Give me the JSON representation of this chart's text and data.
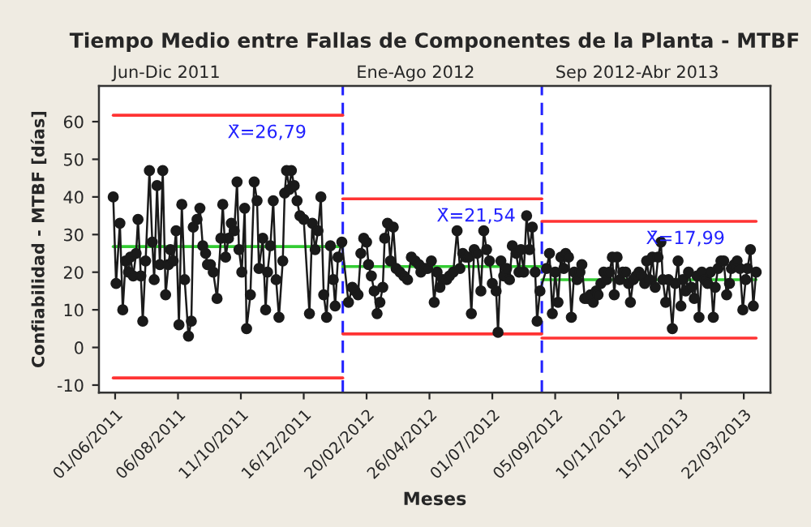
{
  "chart_data": {
    "type": "line",
    "title": "Tiempo Medio entre Fallas de Componentes de la Planta - MTBF",
    "xlabel": "Meses",
    "ylabel": "Confiabilidad - MTBF [días]",
    "xlim": [
      "2011-05-15",
      "2013-04-19"
    ],
    "ylim": [
      -12,
      69.5
    ],
    "xticks": [
      {
        "value": "2011-06-01",
        "label": "01/06/2011"
      },
      {
        "value": "2011-08-06",
        "label": "06/08/2011"
      },
      {
        "value": "2011-10-11",
        "label": "11/10/2011"
      },
      {
        "value": "2011-12-16",
        "label": "16/12/2011"
      },
      {
        "value": "2012-02-20",
        "label": "20/02/2012"
      },
      {
        "value": "2012-04-26",
        "label": "26/04/2012"
      },
      {
        "value": "2012-07-01",
        "label": "01/07/2012"
      },
      {
        "value": "2012-09-05",
        "label": "05/09/2012"
      },
      {
        "value": "2012-11-10",
        "label": "10/11/2012"
      },
      {
        "value": "2013-01-15",
        "label": "15/01/2013"
      },
      {
        "value": "2013-03-22",
        "label": "22/03/2013"
      }
    ],
    "yticks": [
      -10,
      0,
      10,
      20,
      30,
      40,
      50,
      60
    ],
    "marker": "circle",
    "grid": false,
    "legend": false,
    "series": [
      {
        "color": "#1a1a1a",
        "x": [
          "2011-05-30",
          "2011-06-02",
          "2011-06-06",
          "2011-06-09",
          "2011-06-12",
          "2011-06-15",
          "2011-06-17",
          "2011-06-20",
          "2011-06-23",
          "2011-06-25",
          "2011-06-28",
          "2011-06-30",
          "2011-07-03",
          "2011-07-07",
          "2011-07-10",
          "2011-07-12",
          "2011-07-15",
          "2011-07-18",
          "2011-07-21",
          "2011-07-24",
          "2011-07-27",
          "2011-07-29",
          "2011-08-01",
          "2011-08-04",
          "2011-08-07",
          "2011-08-10",
          "2011-08-13",
          "2011-08-17",
          "2011-08-20",
          "2011-08-22",
          "2011-08-26",
          "2011-08-29",
          "2011-09-01",
          "2011-09-04",
          "2011-09-06",
          "2011-09-09",
          "2011-09-12",
          "2011-09-16",
          "2011-09-20",
          "2011-09-22",
          "2011-09-25",
          "2011-09-28",
          "2011-10-01",
          "2011-10-04",
          "2011-10-07",
          "2011-10-09",
          "2011-10-12",
          "2011-10-15",
          "2011-10-17",
          "2011-10-21",
          "2011-10-25",
          "2011-10-28",
          "2011-10-30",
          "2011-11-03",
          "2011-11-06",
          "2011-11-08",
          "2011-11-11",
          "2011-11-14",
          "2011-11-17",
          "2011-11-20",
          "2011-11-24",
          "2011-11-26",
          "2011-11-28",
          "2011-12-01",
          "2011-12-03",
          "2011-12-06",
          "2011-12-09",
          "2011-12-12",
          "2011-12-16",
          "2011-12-22",
          "2011-12-25",
          "2011-12-28",
          "2011-12-31",
          "2012-01-03",
          "2012-01-06",
          "2012-01-09",
          "2012-01-13",
          "2012-01-16",
          "2012-01-18",
          "2012-01-21",
          "2012-01-25",
          "2012-02-01",
          "2012-02-05",
          "2012-02-08",
          "2012-02-11",
          "2012-02-14",
          "2012-02-17",
          "2012-02-20",
          "2012-02-22",
          "2012-02-25",
          "2012-02-28",
          "2012-03-02",
          "2012-03-05",
          "2012-03-08",
          "2012-03-10",
          "2012-03-13",
          "2012-03-16",
          "2012-03-19",
          "2012-03-22",
          "2012-03-26",
          "2012-03-30",
          "2012-04-03",
          "2012-04-07",
          "2012-04-11",
          "2012-04-15",
          "2012-04-17",
          "2012-04-21",
          "2012-04-24",
          "2012-04-28",
          "2012-05-01",
          "2012-05-04",
          "2012-05-07",
          "2012-05-10",
          "2012-05-14",
          "2012-05-17",
          "2012-05-21",
          "2012-05-25",
          "2012-05-28",
          "2012-05-31",
          "2012-06-03",
          "2012-06-06",
          "2012-06-09",
          "2012-06-12",
          "2012-06-15",
          "2012-06-19",
          "2012-06-22",
          "2012-06-25",
          "2012-06-28",
          "2012-07-01",
          "2012-07-05",
          "2012-07-07",
          "2012-07-10",
          "2012-07-13",
          "2012-07-16",
          "2012-07-19",
          "2012-07-22",
          "2012-07-26",
          "2012-07-29",
          "2012-07-31",
          "2012-08-03",
          "2012-08-06",
          "2012-08-09",
          "2012-08-12",
          "2012-08-15",
          "2012-08-17",
          "2012-08-20",
          "2012-08-27",
          "2012-08-30",
          "2012-09-02",
          "2012-09-05",
          "2012-09-08",
          "2012-09-11",
          "2012-09-14",
          "2012-09-16",
          "2012-09-19",
          "2012-09-22",
          "2012-09-25",
          "2012-09-28",
          "2012-10-01",
          "2012-10-03",
          "2012-10-06",
          "2012-10-09",
          "2012-10-12",
          "2012-10-15",
          "2012-10-18",
          "2012-10-20",
          "2012-10-23",
          "2012-10-26",
          "2012-10-29",
          "2012-11-01",
          "2012-11-04",
          "2012-11-06",
          "2012-11-09",
          "2012-11-12",
          "2012-11-15",
          "2012-11-18",
          "2012-11-21",
          "2012-11-23",
          "2012-11-26",
          "2012-11-29",
          "2012-12-02",
          "2012-12-05",
          "2012-12-08",
          "2012-12-10",
          "2012-12-13",
          "2012-12-16",
          "2012-12-19",
          "2012-12-22",
          "2012-12-25",
          "2012-12-27",
          "2012-12-30",
          "2013-01-02",
          "2013-01-06",
          "2013-01-09",
          "2013-01-12",
          "2013-01-15",
          "2013-01-17",
          "2013-01-20",
          "2013-01-23",
          "2013-01-26",
          "2013-01-29",
          "2013-02-01",
          "2013-02-03",
          "2013-02-06",
          "2013-02-09",
          "2013-02-12",
          "2013-02-15",
          "2013-02-18",
          "2013-02-20",
          "2013-02-23",
          "2013-02-26",
          "2013-03-01",
          "2013-03-04",
          "2013-03-07",
          "2013-03-09",
          "2013-03-12",
          "2013-03-15",
          "2013-03-18",
          "2013-03-21",
          "2013-03-24",
          "2013-03-26",
          "2013-03-29",
          "2013-04-01",
          "2013-04-04"
        ],
        "values": [
          40,
          17,
          33,
          10,
          23,
          20,
          24,
          19,
          25,
          34,
          19,
          7,
          23,
          47,
          28,
          18,
          43,
          22,
          47,
          14,
          22,
          26,
          23,
          31,
          6,
          38,
          18,
          3,
          7,
          32,
          34,
          37,
          27,
          25,
          22,
          22,
          20,
          13,
          29,
          38,
          24,
          29,
          33,
          31,
          44,
          26,
          20,
          37,
          5,
          14,
          44,
          39,
          21,
          29,
          10,
          20,
          27,
          39,
          18,
          8,
          23,
          41,
          47,
          42,
          47,
          43,
          39,
          35,
          34,
          9,
          33,
          26,
          31,
          40,
          14,
          8,
          27,
          18,
          11,
          24,
          28,
          12,
          16,
          15,
          14,
          25,
          29,
          28,
          22,
          19,
          15,
          9,
          12,
          16,
          29,
          33,
          23,
          32,
          21,
          20,
          19,
          18,
          24,
          23,
          22,
          20,
          21,
          21,
          23,
          12,
          20,
          16,
          18,
          18,
          19,
          20,
          31,
          21,
          25,
          24,
          24,
          9,
          26,
          25,
          15,
          31,
          26,
          23,
          17,
          15,
          4,
          23,
          19,
          21,
          18,
          27,
          25,
          20,
          26,
          20,
          35,
          26,
          32,
          20,
          7,
          15,
          21,
          25,
          9,
          20,
          12,
          24,
          21,
          25,
          24,
          8,
          20,
          18,
          20,
          22,
          13,
          13,
          14,
          12,
          15,
          14,
          17,
          20,
          18,
          20,
          24,
          14,
          24,
          18,
          20,
          20,
          17,
          12,
          18,
          19,
          20,
          19,
          17,
          23,
          18,
          24,
          16,
          24,
          28,
          18,
          12,
          18,
          5,
          17,
          23,
          11,
          18,
          15,
          20,
          16,
          13,
          19,
          8,
          20,
          18,
          17,
          20,
          8,
          16,
          21,
          23,
          23,
          14,
          17,
          21,
          22,
          23,
          21,
          10,
          18,
          21,
          26,
          11,
          20
        ]
      },
      {
        "color": "#ff3333",
        "marker": "none",
        "x": [
          "2011-05-30",
          "2012-01-26"
        ],
        "values": [
          61.7,
          61.7
        ]
      },
      {
        "color": "#33cc33",
        "marker": "none",
        "x": [
          "2011-05-30",
          "2012-01-26"
        ],
        "values": [
          26.8,
          26.8
        ]
      },
      {
        "color": "#ff3333",
        "marker": "none",
        "x": [
          "2011-05-30",
          "2012-01-26"
        ],
        "values": [
          -8.1,
          -8.1
        ]
      },
      {
        "color": "#ff3333",
        "marker": "none",
        "x": [
          "2012-01-26",
          "2012-08-22"
        ],
        "values": [
          39.5,
          39.5
        ]
      },
      {
        "color": "#33cc33",
        "marker": "none",
        "x": [
          "2012-01-26",
          "2012-08-22"
        ],
        "values": [
          21.5,
          21.5
        ]
      },
      {
        "color": "#ff3333",
        "marker": "none",
        "x": [
          "2012-01-26",
          "2012-08-22"
        ],
        "values": [
          3.6,
          3.6
        ]
      },
      {
        "color": "#ff3333",
        "marker": "none",
        "x": [
          "2012-08-22",
          "2013-04-04"
        ],
        "values": [
          33.5,
          33.5
        ]
      },
      {
        "color": "#33cc33",
        "marker": "none",
        "x": [
          "2012-08-22",
          "2013-04-04"
        ],
        "values": [
          18.0,
          18.0
        ]
      },
      {
        "color": "#ff3333",
        "marker": "none",
        "x": [
          "2012-08-22",
          "2013-04-04"
        ],
        "values": [
          2.5,
          2.5
        ]
      }
    ],
    "ref_lines": [
      {
        "axis": "x",
        "value": "2012-01-26",
        "color": "#2222ff",
        "line_style": "dashed"
      },
      {
        "axis": "x",
        "value": "2012-08-22",
        "color": "#2222ff",
        "line_style": "dashed"
      }
    ],
    "annotations": [
      "Jun-Dic 2011",
      "Ene-Ago 2012",
      "Sep 2012-Abr 2013",
      "X̄=26,79",
      "X̄=21,54",
      "X̄=17,99"
    ]
  }
}
